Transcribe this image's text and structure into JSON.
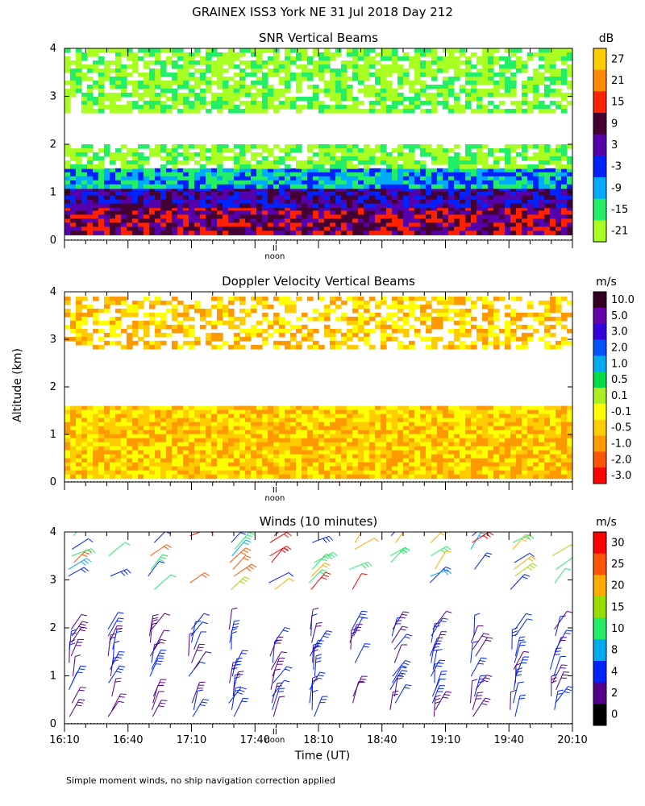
{
  "figure": {
    "title": "GRAINEX ISS3 York NE  31 Jul 2018 Day 212",
    "ylabel": "Altitude (km)",
    "xlabel": "Time (UT)",
    "footnote": "Simple moment winds, no ship navigation correction applied",
    "noon_label": "noon",
    "noon_marker": "II",
    "x_tick_labels": [
      "16:10",
      "16:40",
      "17:10",
      "17:40",
      "18:10",
      "18:40",
      "19:10",
      "19:40",
      "20:10"
    ],
    "y_tick_labels": [
      "0",
      "1",
      "2",
      "3",
      "4"
    ]
  },
  "chart_data": [
    {
      "type": "heatmap",
      "title": "SNR Vertical Beams",
      "colorbar_unit": "dB",
      "colorbar_labels": [
        "27",
        "21",
        "15",
        "9",
        "3",
        "-3",
        "-9",
        "-15",
        "-21"
      ],
      "colorbar_colors": [
        "#ffcc00",
        "#ff8800",
        "#ff2200",
        "#440033",
        "#5500aa",
        "#0022ff",
        "#00aaff",
        "#22ee66",
        "#aaff22"
      ],
      "xlim_hours_ut": [
        16.1667,
        20.1667
      ],
      "ylim_km": [
        0,
        4
      ],
      "layers": [
        {
          "altitude_km": [
            0.15,
            0.7
          ],
          "snr_db": 9
        },
        {
          "altitude_km": [
            0.7,
            1.1
          ],
          "snr_db": 3
        },
        {
          "altitude_km": [
            1.1,
            1.5
          ],
          "snr_db": -9
        },
        {
          "altitude_km": [
            1.5,
            2.0
          ],
          "snr_db": -21
        },
        {
          "altitude_km": [
            2.7,
            4.0
          ],
          "snr_db": -21
        }
      ]
    },
    {
      "type": "heatmap",
      "title": "Doppler Velocity Vertical Beams",
      "colorbar_unit": "m/s",
      "colorbar_labels": [
        "10.0",
        "5.0",
        "3.0",
        "2.0",
        "1.0",
        "0.5",
        "0.1",
        "-0.1",
        "-0.5",
        "-1.0",
        "-2.0",
        "-3.0"
      ],
      "colorbar_colors": [
        "#330022",
        "#6600aa",
        "#3300dd",
        "#0055ff",
        "#00aaee",
        "#00dd44",
        "#aaee22",
        "#ffff00",
        "#ffcc00",
        "#ff9900",
        "#ff5500",
        "#ff0000"
      ],
      "xlim_hours_ut": [
        16.1667,
        20.1667
      ],
      "ylim_km": [
        0,
        4
      ],
      "layers": [
        {
          "altitude_km": [
            0.15,
            1.6
          ],
          "velocity_ms": -0.5
        },
        {
          "altitude_km": [
            2.8,
            3.9
          ],
          "velocity_ms": -0.5
        }
      ]
    },
    {
      "type": "scatter",
      "title": "Winds (10 minutes)",
      "colorbar_unit": "m/s",
      "colorbar_labels": [
        "30",
        "25",
        "20",
        "15",
        "10",
        "8",
        "4",
        "2",
        "0"
      ],
      "colorbar_colors": [
        "#ff0000",
        "#ff5500",
        "#ffaa00",
        "#99dd00",
        "#22ee66",
        "#00aaee",
        "#0022ff",
        "#550088",
        "#000000"
      ],
      "xlim_hours_ut": [
        16.1667,
        20.1667
      ],
      "ylim_km": [
        0,
        4
      ],
      "interval_minutes": 10,
      "upper_layer_km": [
        2.8,
        4.0
      ],
      "lower_layer_km": [
        0.15,
        2.0
      ]
    }
  ]
}
